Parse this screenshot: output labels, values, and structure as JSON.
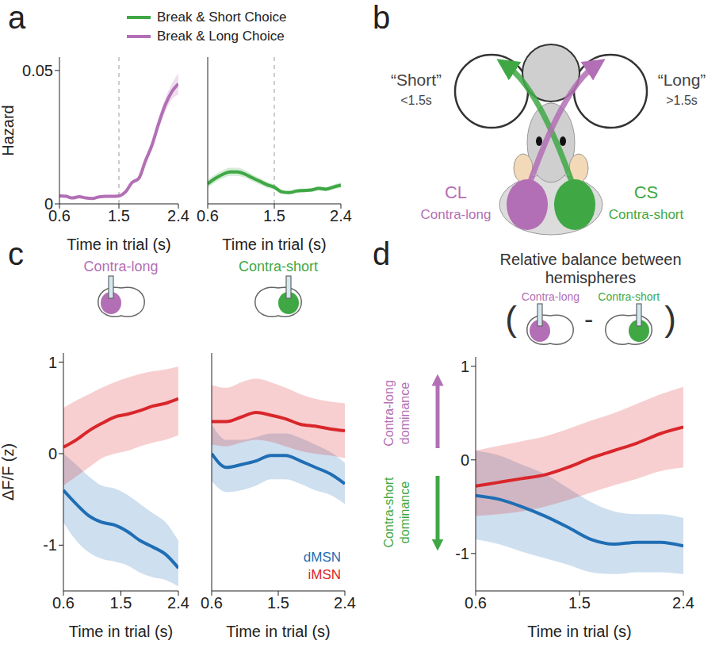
{
  "panel_labels": [
    "a",
    "b",
    "c",
    "d"
  ],
  "diagram": {
    "choices": [
      {
        "label": "“Short”",
        "sublabel": "<1.5s"
      },
      {
        "label": "“Long”",
        "sublabel": ">1.5s"
      }
    ],
    "hemispheres": [
      {
        "label": "CL",
        "sublabel": "Contra-long"
      },
      {
        "label": "CS",
        "sublabel": "Contra-short"
      }
    ]
  },
  "chart_data": [
    {
      "type": "line",
      "y_label": "Hazard",
      "x_label": "Time in trial (s)",
      "xlim": [
        0.6,
        2.4
      ],
      "xticks": [
        0.6,
        1.5,
        2.4
      ],
      "ylim": [
        0,
        0.055
      ],
      "yticks": [
        0,
        0.05
      ],
      "vlines": [
        1.5
      ],
      "legend": "top",
      "x": [
        0.6,
        0.7,
        0.8,
        0.9,
        1.0,
        1.1,
        1.2,
        1.3,
        1.4,
        1.5,
        1.6,
        1.7,
        1.8,
        1.9,
        2.0,
        2.1,
        2.2,
        2.3,
        2.4
      ],
      "series": [
        {
          "name": "Break & Long Choice",
          "color": "#b36fb5",
          "values": [
            0.003,
            0.0028,
            0.0022,
            0.0027,
            0.0022,
            0.002,
            0.0026,
            0.0028,
            0.0028,
            0.003,
            0.0045,
            0.008,
            0.0095,
            0.016,
            0.022,
            0.03,
            0.037,
            0.042,
            0.045
          ],
          "lower": [
            0.0025,
            0.0024,
            0.0018,
            0.0023,
            0.0018,
            0.0016,
            0.0022,
            0.0024,
            0.0024,
            0.0026,
            0.004,
            0.0073,
            0.0087,
            0.0148,
            0.0205,
            0.028,
            0.0345,
            0.039,
            0.041
          ],
          "upper": [
            0.0035,
            0.0032,
            0.0026,
            0.0031,
            0.0026,
            0.0024,
            0.003,
            0.0032,
            0.0032,
            0.0034,
            0.005,
            0.0087,
            0.0103,
            0.0172,
            0.0235,
            0.032,
            0.0395,
            0.045,
            0.049
          ]
        }
      ]
    },
    {
      "type": "line",
      "x_label": "Time in trial (s)",
      "xlim": [
        0.6,
        2.4
      ],
      "xticks": [
        0.6,
        1.5,
        2.4
      ],
      "ylim": [
        0,
        0.055
      ],
      "tick_labels": "x",
      "vlines": [
        1.5
      ],
      "legend": "top",
      "x": [
        0.6,
        0.7,
        0.8,
        0.9,
        1.0,
        1.1,
        1.2,
        1.3,
        1.4,
        1.5,
        1.6,
        1.7,
        1.8,
        1.9,
        2.0,
        2.1,
        2.2,
        2.3,
        2.4
      ],
      "series": [
        {
          "name": "Break & Short Choice",
          "color": "#3fa845",
          "values": [
            0.0075,
            0.0095,
            0.011,
            0.012,
            0.012,
            0.0112,
            0.0098,
            0.0085,
            0.0072,
            0.0062,
            0.0045,
            0.0042,
            0.0048,
            0.005,
            0.0052,
            0.0058,
            0.0055,
            0.0063,
            0.007
          ],
          "lower": [
            0.006,
            0.008,
            0.0095,
            0.0105,
            0.0105,
            0.0098,
            0.0085,
            0.0073,
            0.0061,
            0.0052,
            0.0037,
            0.0035,
            0.0041,
            0.0043,
            0.0045,
            0.005,
            0.0047,
            0.0054,
            0.006
          ],
          "upper": [
            0.009,
            0.011,
            0.0125,
            0.0135,
            0.0135,
            0.0126,
            0.0111,
            0.0097,
            0.0083,
            0.0072,
            0.0053,
            0.0049,
            0.0055,
            0.0057,
            0.0059,
            0.0066,
            0.0063,
            0.0072,
            0.008
          ]
        }
      ]
    },
    {
      "type": "line",
      "title": "Contra-long",
      "y_label": "ΔF/F (z)",
      "x_label": "Time in trial (s)",
      "xlim": [
        0.6,
        2.4
      ],
      "xticks": [
        0.6,
        1.5,
        2.4
      ],
      "ylim": [
        -1.5,
        1.1
      ],
      "yticks": [
        -1,
        0,
        1
      ],
      "x": [
        0.6,
        0.8,
        1.0,
        1.2,
        1.4,
        1.6,
        1.8,
        2.0,
        2.2,
        2.4
      ],
      "series": [
        {
          "name": "dMSN",
          "color": "#1f6eb4",
          "values": [
            -0.4,
            -0.55,
            -0.68,
            -0.75,
            -0.78,
            -0.85,
            -0.95,
            -1.02,
            -1.1,
            -1.25
          ],
          "lower": [
            -0.75,
            -0.95,
            -1.08,
            -1.15,
            -1.18,
            -1.22,
            -1.3,
            -1.35,
            -1.38,
            -1.45
          ],
          "upper": [
            0.0,
            -0.12,
            -0.25,
            -0.35,
            -0.38,
            -0.45,
            -0.55,
            -0.65,
            -0.75,
            -0.95
          ]
        },
        {
          "name": "iMSN",
          "color": "#d9262b",
          "values": [
            0.07,
            0.15,
            0.25,
            0.33,
            0.4,
            0.43,
            0.47,
            0.52,
            0.55,
            0.6
          ],
          "lower": [
            -0.35,
            -0.25,
            -0.15,
            -0.05,
            0.0,
            0.03,
            0.08,
            0.12,
            0.15,
            0.2
          ],
          "upper": [
            0.5,
            0.58,
            0.65,
            0.72,
            0.78,
            0.83,
            0.87,
            0.9,
            0.92,
            0.95
          ]
        }
      ]
    },
    {
      "type": "line",
      "title": "Contra-short",
      "x_label": "Time in trial (s)",
      "xlim": [
        0.6,
        2.4
      ],
      "xticks": [
        0.6,
        1.5,
        2.4
      ],
      "ylim": [
        -1.5,
        1.1
      ],
      "tick_labels": "x",
      "legend": "lower right",
      "x": [
        0.6,
        0.8,
        1.0,
        1.2,
        1.4,
        1.6,
        1.8,
        2.0,
        2.2,
        2.4
      ],
      "series": [
        {
          "name": "dMSN",
          "color": "#1f6eb4",
          "values": [
            0.0,
            -0.15,
            -0.12,
            -0.08,
            -0.02,
            -0.02,
            -0.08,
            -0.15,
            -0.22,
            -0.33
          ],
          "lower": [
            -0.3,
            -0.42,
            -0.4,
            -0.35,
            -0.28,
            -0.28,
            -0.33,
            -0.4,
            -0.45,
            -0.55
          ],
          "upper": [
            0.32,
            0.15,
            0.15,
            0.18,
            0.22,
            0.22,
            0.17,
            0.1,
            0.02,
            -0.1
          ]
        },
        {
          "name": "iMSN",
          "color": "#d9262b",
          "values": [
            0.35,
            0.35,
            0.4,
            0.45,
            0.42,
            0.38,
            0.32,
            0.3,
            0.27,
            0.25
          ],
          "lower": [
            0.1,
            0.08,
            0.12,
            0.15,
            0.13,
            0.08,
            0.03,
            0.0,
            -0.02,
            -0.05
          ],
          "upper": [
            0.75,
            0.72,
            0.78,
            0.82,
            0.78,
            0.72,
            0.65,
            0.6,
            0.57,
            0.55
          ]
        }
      ]
    },
    {
      "type": "line",
      "title": "Relative balance between hemispheres",
      "formula": [
        "(",
        "Contra-long",
        "-",
        "Contra-short",
        ")"
      ],
      "arrow_labels": [
        "Contra-long dominance",
        "Contra-short dominance"
      ],
      "x_label": "Time in trial (s)",
      "xlim": [
        0.6,
        2.4
      ],
      "xticks": [
        0.6,
        1.5,
        2.4
      ],
      "ylim": [
        -1.4,
        1.1
      ],
      "yticks": [
        -1,
        0,
        1
      ],
      "x": [
        0.6,
        0.8,
        1.0,
        1.2,
        1.4,
        1.6,
        1.8,
        2.0,
        2.2,
        2.4
      ],
      "series": [
        {
          "name": "dMSN",
          "color": "#1f6eb4",
          "values": [
            -0.38,
            -0.42,
            -0.5,
            -0.6,
            -0.72,
            -0.85,
            -0.9,
            -0.88,
            -0.88,
            -0.92
          ],
          "lower": [
            -0.85,
            -0.9,
            -0.98,
            -1.05,
            -1.12,
            -1.2,
            -1.22,
            -1.2,
            -1.2,
            -1.22
          ],
          "upper": [
            0.1,
            0.05,
            -0.05,
            -0.15,
            -0.3,
            -0.45,
            -0.55,
            -0.58,
            -0.58,
            -0.62
          ]
        },
        {
          "name": "iMSN",
          "color": "#d9262b",
          "values": [
            -0.28,
            -0.24,
            -0.2,
            -0.16,
            -0.08,
            0.02,
            0.1,
            0.18,
            0.28,
            0.35
          ],
          "lower": [
            -0.6,
            -0.58,
            -0.55,
            -0.5,
            -0.43,
            -0.35,
            -0.27,
            -0.2,
            -0.12,
            -0.08
          ],
          "upper": [
            0.1,
            0.15,
            0.2,
            0.25,
            0.33,
            0.42,
            0.5,
            0.6,
            0.7,
            0.78
          ]
        }
      ]
    }
  ]
}
